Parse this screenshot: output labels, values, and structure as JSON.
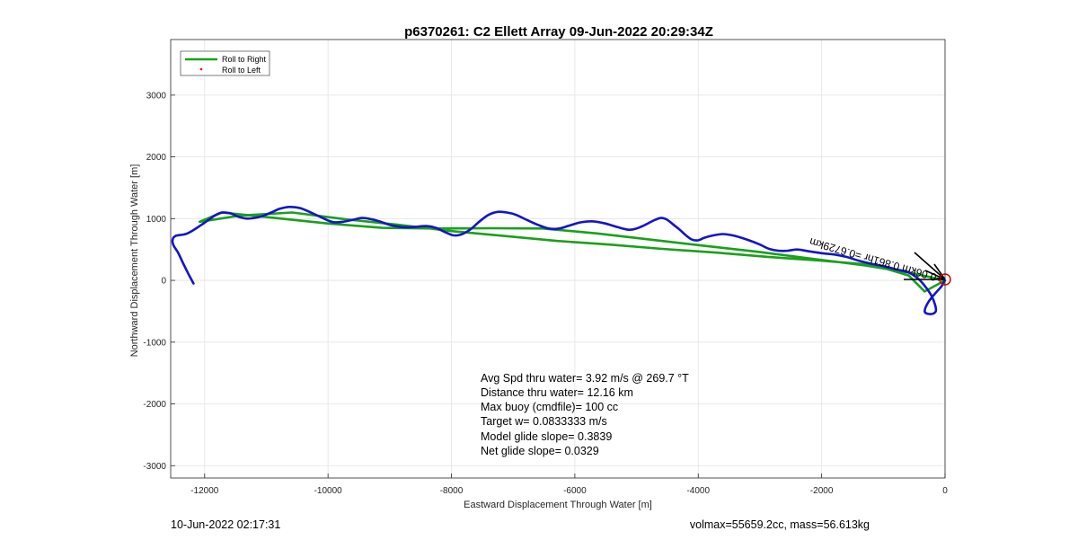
{
  "chart_data": {
    "type": "line",
    "title": "p6370261: C2 Ellett Array 09-Jun-2022 20:29:34Z",
    "xlabel": "Eastward Displacement Through Water [m]",
    "ylabel": "Northward Displacement Through Water [m]",
    "xlim": [
      -12550,
      0
    ],
    "ylim": [
      -3200,
      3900
    ],
    "xticks": [
      -12000,
      -10000,
      -8000,
      -6000,
      -4000,
      -2000,
      0
    ],
    "yticks": [
      -3000,
      -2000,
      -1000,
      0,
      1000,
      2000,
      3000
    ],
    "grid": true,
    "legend": {
      "placement": "top-left",
      "entries": [
        {
          "label": "Roll to Right",
          "color": "#1aa01a",
          "style": "line"
        },
        {
          "label": "Roll to Left",
          "color": "#ff0000",
          "style": "dot"
        }
      ]
    },
    "series": [
      {
        "name": "Roll to Right",
        "color": "#1aa01a",
        "x": [
          0,
          -540,
          -1280,
          -2150,
          -3010,
          -3900,
          -4770,
          -5640,
          -6520,
          -7380,
          -8250,
          -9120,
          -9990,
          -10860,
          -11720,
          -12080,
          -11420,
          -10580,
          -9720,
          -8860,
          -8010,
          -7150,
          -6300,
          -5440,
          -4580,
          -3720,
          -2870,
          -2010,
          -1160,
          -590,
          -330,
          0
        ],
        "y": [
          0,
          120,
          240,
          350,
          460,
          560,
          660,
          760,
          840,
          845,
          840,
          850,
          920,
          1010,
          1100,
          950,
          1050,
          1100,
          990,
          900,
          800,
          720,
          640,
          580,
          510,
          450,
          380,
          320,
          250,
          80,
          -180,
          0
        ]
      },
      {
        "name": "trajectory",
        "color": "#1414c8",
        "x": [
          -12180,
          -12260,
          -12360,
          -12430,
          -12500,
          -12520,
          -12470,
          -12280,
          -12050,
          -11780,
          -11600,
          -11450,
          -11300,
          -11100,
          -10920,
          -10780,
          -10620,
          -10450,
          -10300,
          -10150,
          -10000,
          -9900,
          -9750,
          -9600,
          -9450,
          -9320,
          -9180,
          -9000,
          -8850,
          -8700,
          -8550,
          -8400,
          -8250,
          -8100,
          -7970,
          -7850,
          -7700,
          -7550,
          -7400,
          -7250,
          -7100,
          -6950,
          -6780,
          -6600,
          -6420,
          -6250,
          -6080,
          -5900,
          -5700,
          -5500,
          -5300,
          -5120,
          -5000,
          -4900,
          -4800,
          -4700,
          -4600,
          -4500,
          -4400,
          -4300,
          -4200,
          -4100,
          -4000,
          -3900,
          -3750,
          -3600,
          -3450,
          -3300,
          -3150,
          -3000,
          -2850,
          -2700,
          -2550,
          -2400,
          -2200,
          -2000,
          -1800,
          -1600,
          -1400,
          -1200,
          -1000,
          -800,
          -600,
          -450,
          -320,
          -220,
          -160,
          -150,
          -200,
          -280,
          -330,
          -270,
          -150,
          -60,
          -20,
          0
        ],
        "y": [
          -50,
          100,
          300,
          450,
          560,
          650,
          720,
          760,
          900,
          1080,
          1090,
          1030,
          1000,
          1030,
          1100,
          1160,
          1190,
          1170,
          1110,
          1040,
          970,
          940,
          950,
          980,
          1010,
          995,
          960,
          900,
          870,
          860,
          870,
          880,
          850,
          780,
          730,
          740,
          820,
          950,
          1060,
          1110,
          1100,
          1060,
          980,
          900,
          840,
          840,
          890,
          940,
          955,
          920,
          860,
          820,
          840,
          880,
          930,
          980,
          1010,
          980,
          900,
          820,
          730,
          660,
          650,
          690,
          730,
          750,
          730,
          690,
          640,
          580,
          510,
          480,
          480,
          500,
          470,
          440,
          420,
          380,
          320,
          270,
          230,
          180,
          130,
          40,
          -100,
          -250,
          -400,
          -500,
          -540,
          -540,
          -500,
          -350,
          -200,
          -100,
          -30,
          0
        ]
      }
    ],
    "annotations": {
      "end_marker": {
        "shape": "circle",
        "color": "#ff0000",
        "x": 0,
        "y": 0
      },
      "rotated_label": "+0.06km 0.861hr =0.6729km",
      "rotated_label_angle_deg": 196,
      "current_vectors_color": "#000000"
    },
    "stats": [
      "Avg Spd thru water=  3.92 m/s @ 269.7 °T",
      "Distance thru water= 12.16 km",
      "Max buoy (cmdfile)= 100 cc",
      "Target w= 0.0833333 m/s",
      "Model glide slope= 0.3839",
      "Net glide slope= 0.0329"
    ],
    "footer_left": "10-Jun-2022 02:17:31",
    "footer_right": "volmax=55659.2cc, mass=56.613kg"
  }
}
